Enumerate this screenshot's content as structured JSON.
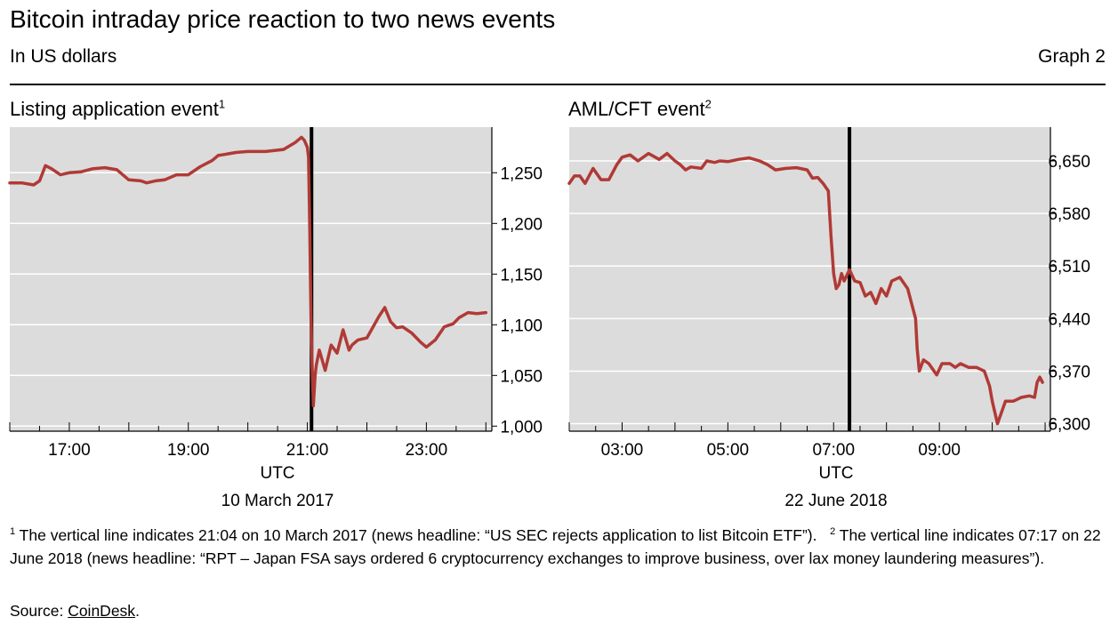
{
  "header": {
    "title": "Bitcoin intraday price reaction to two news events",
    "subtitle": "In US dollars",
    "graph_label": "Graph 2"
  },
  "colors": {
    "series": "#b03a36",
    "plot_bg": "#dcdcdc",
    "event_line": "#000000",
    "grid": "#ffffff"
  },
  "chart_data": [
    {
      "type": "line",
      "title": "Listing application event",
      "title_note": "1",
      "xlabel": "UTC",
      "date_label": "10 March 2017",
      "x_ticks": [
        "17:00",
        "19:00",
        "21:00",
        "23:00"
      ],
      "x_tick_values": [
        17,
        19,
        21,
        23
      ],
      "xlim": [
        16,
        24.1
      ],
      "ylim": [
        995,
        1295
      ],
      "y_ticks": [
        1000,
        1050,
        1100,
        1150,
        1200,
        1250
      ],
      "y_tick_labels": [
        "1,000",
        "1,050",
        "1,100",
        "1,150",
        "1,200",
        "1,250"
      ],
      "event_x": 21.07,
      "series": [
        {
          "x": [
            16.0,
            16.2,
            16.4,
            16.5,
            16.6,
            16.7,
            16.85,
            17.0,
            17.2,
            17.4,
            17.6,
            17.8,
            18.0,
            18.2,
            18.3,
            18.45,
            18.6,
            18.8,
            19.0,
            19.2,
            19.4,
            19.5,
            19.6,
            19.8,
            20.0,
            20.3,
            20.6,
            20.8,
            20.9,
            20.95,
            21.0,
            21.02,
            21.04,
            21.06,
            21.08,
            21.1,
            21.13,
            21.15,
            21.2,
            21.25,
            21.3,
            21.4,
            21.5,
            21.6,
            21.7,
            21.75,
            21.85,
            22.0,
            22.2,
            22.3,
            22.4,
            22.5,
            22.6,
            22.75,
            22.9,
            23.0,
            23.15,
            23.3,
            23.45,
            23.55,
            23.7,
            23.85,
            24.0
          ],
          "y": [
            1240,
            1240,
            1238,
            1242,
            1257,
            1254,
            1248,
            1250,
            1251,
            1254,
            1255,
            1253,
            1243,
            1242,
            1240,
            1242,
            1243,
            1248,
            1248,
            1256,
            1262,
            1267,
            1268,
            1270,
            1271,
            1271,
            1273,
            1280,
            1285,
            1282,
            1275,
            1265,
            1200,
            1110,
            1060,
            1020,
            1050,
            1060,
            1075,
            1065,
            1055,
            1080,
            1072,
            1095,
            1075,
            1080,
            1085,
            1087,
            1108,
            1117,
            1103,
            1097,
            1098,
            1092,
            1083,
            1078,
            1085,
            1098,
            1101,
            1107,
            1112,
            1111,
            1112
          ]
        }
      ]
    },
    {
      "type": "line",
      "title": "AML/CFT event",
      "title_note": "2",
      "xlabel": "UTC",
      "date_label": "22 June 2018",
      "x_ticks": [
        "03:00",
        "05:00",
        "07:00",
        "09:00"
      ],
      "x_tick_values": [
        3,
        5,
        7,
        9
      ],
      "xlim": [
        2,
        11.1
      ],
      "ylim": [
        6290,
        6695
      ],
      "y_ticks": [
        6300,
        6370,
        6440,
        6510,
        6580,
        6650
      ],
      "y_tick_labels": [
        "6,300",
        "6,370",
        "6,440",
        "6,510",
        "6,580",
        "6,650"
      ],
      "event_x": 7.3,
      "series": [
        {
          "x": [
            2.0,
            2.1,
            2.2,
            2.3,
            2.45,
            2.6,
            2.75,
            2.9,
            3.0,
            3.15,
            3.3,
            3.5,
            3.7,
            3.85,
            4.0,
            4.1,
            4.2,
            4.3,
            4.5,
            4.6,
            4.75,
            4.85,
            5.0,
            5.2,
            5.4,
            5.6,
            5.75,
            5.9,
            6.1,
            6.3,
            6.5,
            6.6,
            6.7,
            6.8,
            6.9,
            6.95,
            7.0,
            7.05,
            7.1,
            7.15,
            7.2,
            7.3,
            7.4,
            7.5,
            7.6,
            7.7,
            7.8,
            7.9,
            8.0,
            8.1,
            8.25,
            8.4,
            8.55,
            8.58,
            8.62,
            8.7,
            8.8,
            8.95,
            9.05,
            9.2,
            9.3,
            9.4,
            9.55,
            9.7,
            9.85,
            9.95,
            10.0,
            10.1,
            10.25,
            10.4,
            10.55,
            10.7,
            10.8,
            10.85,
            10.9,
            10.95
          ],
          "y": [
            6620,
            6630,
            6630,
            6620,
            6640,
            6625,
            6625,
            6645,
            6655,
            6658,
            6650,
            6660,
            6652,
            6660,
            6650,
            6645,
            6638,
            6642,
            6640,
            6650,
            6648,
            6650,
            6649,
            6652,
            6654,
            6650,
            6645,
            6638,
            6640,
            6641,
            6638,
            6627,
            6628,
            6620,
            6610,
            6550,
            6500,
            6480,
            6485,
            6500,
            6490,
            6505,
            6490,
            6488,
            6470,
            6475,
            6460,
            6480,
            6470,
            6490,
            6495,
            6480,
            6440,
            6400,
            6370,
            6385,
            6380,
            6365,
            6380,
            6380,
            6375,
            6380,
            6375,
            6375,
            6370,
            6350,
            6330,
            6300,
            6330,
            6330,
            6335,
            6337,
            6335,
            6355,
            6362,
            6355
          ]
        }
      ]
    }
  ],
  "footnotes": {
    "n1_mark": "1",
    "n1_text": "The vertical line indicates 21:04 on 10 March 2017 (news headline: “US SEC rejects application to list Bitcoin ETF”).",
    "n2_mark": "2",
    "n2_text": "The vertical line indicates 07:17 on 22 June 2018 (news headline: “RPT – Japan FSA says ordered 6 cryptocurrency exchanges to improve business, over lax money laundering measures”)."
  },
  "source": {
    "prefix": "Source: ",
    "name": "CoinDesk",
    "suffix": "."
  }
}
